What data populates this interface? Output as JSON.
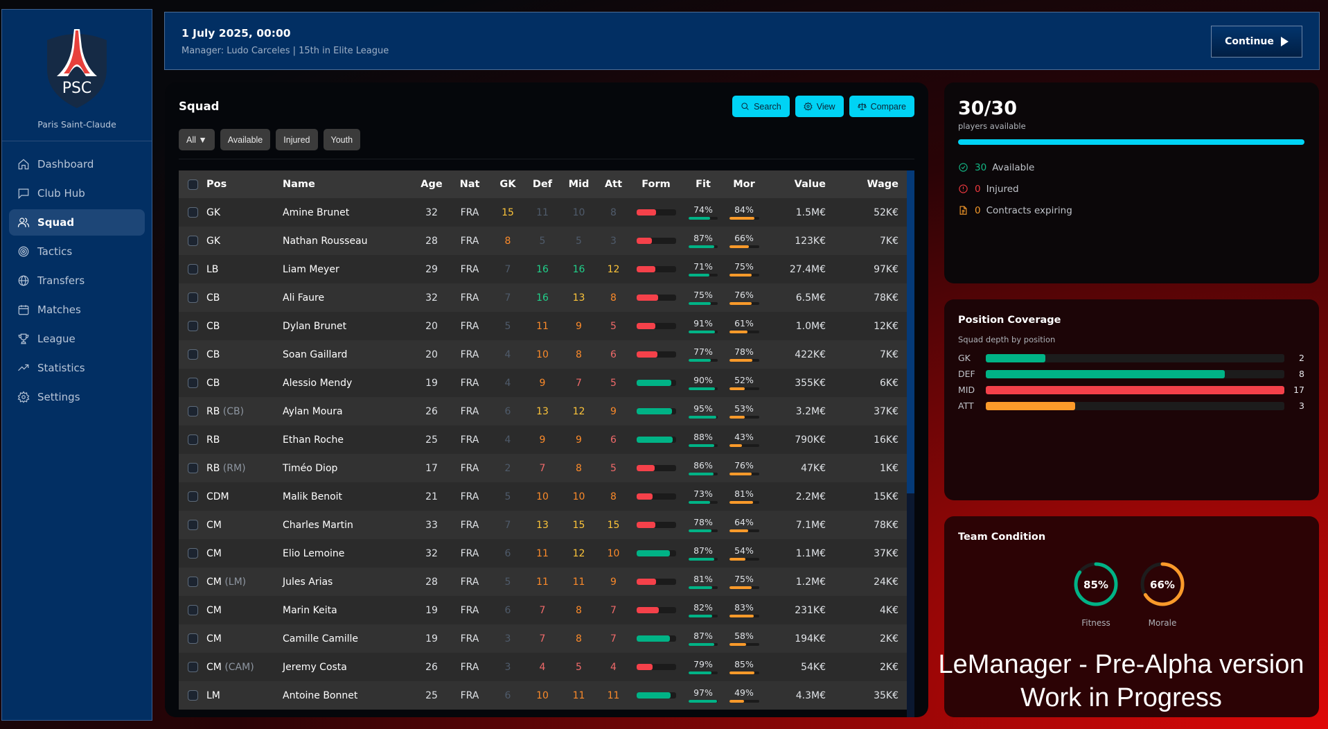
{
  "club": {
    "abbr": "PSC",
    "name": "Paris Saint-Claude"
  },
  "sidebar": {
    "items": [
      {
        "label": "Dashboard",
        "icon": "home-icon",
        "active": false
      },
      {
        "label": "Club Hub",
        "icon": "chat-icon",
        "active": false
      },
      {
        "label": "Squad",
        "icon": "users-icon",
        "active": true
      },
      {
        "label": "Tactics",
        "icon": "target-icon",
        "active": false
      },
      {
        "label": "Transfers",
        "icon": "globe-icon",
        "active": false
      },
      {
        "label": "Matches",
        "icon": "calendar-icon",
        "active": false
      },
      {
        "label": "League",
        "icon": "trophy-icon",
        "active": false
      },
      {
        "label": "Statistics",
        "icon": "trend-icon",
        "active": false
      },
      {
        "label": "Settings",
        "icon": "gear-icon",
        "active": false
      }
    ]
  },
  "header": {
    "date": "1 July 2025, 00:00",
    "subtitle": "Manager: Ludo Carceles | 15th in Elite League",
    "continue_label": "Continue"
  },
  "squad": {
    "title": "Squad",
    "filters": [
      "All ▼",
      "Available",
      "Injured",
      "Youth"
    ],
    "actions": [
      {
        "label": "Search",
        "icon": "search-icon"
      },
      {
        "label": "View",
        "icon": "gear-icon"
      },
      {
        "label": "Compare",
        "icon": "scale-icon"
      }
    ],
    "columns": [
      "Pos",
      "Name",
      "Age",
      "Nat",
      "GK",
      "Def",
      "Mid",
      "Att",
      "Form",
      "Fit",
      "Mor",
      "Value",
      "Wage"
    ],
    "players": [
      {
        "pos": "GK",
        "alt": "",
        "name": "Amine Brunet",
        "age": "32",
        "nat": "FRA",
        "gk": 15,
        "def": 11,
        "mid": 10,
        "att": 8,
        "form": 50,
        "form_color": "#f5414a",
        "fit": "74%",
        "mor": "84%",
        "value": "1.5M€",
        "wage": "52K€",
        "dim": [
          "def",
          "mid",
          "att"
        ]
      },
      {
        "pos": "GK",
        "alt": "",
        "name": "Nathan Rousseau",
        "age": "28",
        "nat": "FRA",
        "gk": 8,
        "def": 5,
        "mid": 5,
        "att": 3,
        "form": 40,
        "form_color": "#f5414a",
        "fit": "87%",
        "mor": "66%",
        "value": "123K€",
        "wage": "7K€",
        "dim": [
          "def",
          "mid",
          "att"
        ]
      },
      {
        "pos": "LB",
        "alt": "",
        "name": "Liam Meyer",
        "age": "29",
        "nat": "FRA",
        "gk": 7,
        "def": 16,
        "mid": 16,
        "att": 12,
        "form": 48,
        "form_color": "#f5414a",
        "fit": "71%",
        "mor": "75%",
        "value": "27.4M€",
        "wage": "97K€",
        "dim": [
          "gk"
        ]
      },
      {
        "pos": "CB",
        "alt": "",
        "name": "Ali Faure",
        "age": "32",
        "nat": "FRA",
        "gk": 7,
        "def": 16,
        "mid": 13,
        "att": 8,
        "form": 55,
        "form_color": "#f5414a",
        "fit": "75%",
        "mor": "76%",
        "value": "6.5M€",
        "wage": "78K€",
        "dim": [
          "gk"
        ]
      },
      {
        "pos": "CB",
        "alt": "",
        "name": "Dylan Brunet",
        "age": "20",
        "nat": "FRA",
        "gk": 5,
        "def": 11,
        "mid": 9,
        "att": 5,
        "form": 48,
        "form_color": "#f5414a",
        "fit": "91%",
        "mor": "61%",
        "value": "1.0M€",
        "wage": "12K€",
        "dim": [
          "gk"
        ]
      },
      {
        "pos": "CB",
        "alt": "",
        "name": "Soan Gaillard",
        "age": "20",
        "nat": "FRA",
        "gk": 4,
        "def": 10,
        "mid": 8,
        "att": 6,
        "form": 53,
        "form_color": "#f5414a",
        "fit": "77%",
        "mor": "78%",
        "value": "422K€",
        "wage": "7K€",
        "dim": [
          "gk"
        ]
      },
      {
        "pos": "CB",
        "alt": "",
        "name": "Alessio Mendy",
        "age": "19",
        "nat": "FRA",
        "gk": 4,
        "def": 9,
        "mid": 7,
        "att": 5,
        "form": 88,
        "form_color": "#00b386",
        "fit": "90%",
        "mor": "52%",
        "value": "355K€",
        "wage": "6K€",
        "dim": [
          "gk"
        ]
      },
      {
        "pos": "RB",
        "alt": "(CB)",
        "name": "Aylan Moura",
        "age": "26",
        "nat": "FRA",
        "gk": 6,
        "def": 13,
        "mid": 12,
        "att": 9,
        "form": 90,
        "form_color": "#00b386",
        "fit": "95%",
        "mor": "53%",
        "value": "3.2M€",
        "wage": "37K€",
        "dim": [
          "gk"
        ]
      },
      {
        "pos": "RB",
        "alt": "",
        "name": "Ethan Roche",
        "age": "25",
        "nat": "FRA",
        "gk": 4,
        "def": 9,
        "mid": 9,
        "att": 6,
        "form": 92,
        "form_color": "#00b386",
        "fit": "88%",
        "mor": "43%",
        "value": "790K€",
        "wage": "16K€",
        "dim": [
          "gk"
        ]
      },
      {
        "pos": "RB",
        "alt": "(RM)",
        "name": "Timéo Diop",
        "age": "17",
        "nat": "FRA",
        "gk": 2,
        "def": 7,
        "mid": 8,
        "att": 5,
        "form": 46,
        "form_color": "#f5414a",
        "fit": "86%",
        "mor": "76%",
        "value": "47K€",
        "wage": "1K€",
        "dim": [
          "gk"
        ]
      },
      {
        "pos": "CDM",
        "alt": "",
        "name": "Malik Benoit",
        "age": "21",
        "nat": "FRA",
        "gk": 5,
        "def": 10,
        "mid": 10,
        "att": 8,
        "form": 41,
        "form_color": "#f5414a",
        "fit": "73%",
        "mor": "81%",
        "value": "2.2M€",
        "wage": "15K€",
        "dim": [
          "gk"
        ]
      },
      {
        "pos": "CM",
        "alt": "",
        "name": "Charles Martin",
        "age": "33",
        "nat": "FRA",
        "gk": 7,
        "def": 13,
        "mid": 15,
        "att": 15,
        "form": 48,
        "form_color": "#f5414a",
        "fit": "78%",
        "mor": "64%",
        "value": "7.1M€",
        "wage": "78K€",
        "dim": [
          "gk"
        ]
      },
      {
        "pos": "CM",
        "alt": "",
        "name": "Elio Lemoine",
        "age": "32",
        "nat": "FRA",
        "gk": 6,
        "def": 11,
        "mid": 12,
        "att": 10,
        "form": 85,
        "form_color": "#00b386",
        "fit": "87%",
        "mor": "54%",
        "value": "1.1M€",
        "wage": "37K€",
        "dim": [
          "gk"
        ]
      },
      {
        "pos": "CM",
        "alt": "(LM)",
        "name": "Jules Arias",
        "age": "28",
        "nat": "FRA",
        "gk": 5,
        "def": 11,
        "mid": 11,
        "att": 9,
        "form": 50,
        "form_color": "#f5414a",
        "fit": "81%",
        "mor": "75%",
        "value": "1.2M€",
        "wage": "24K€",
        "dim": [
          "gk"
        ]
      },
      {
        "pos": "CM",
        "alt": "",
        "name": "Marin Keita",
        "age": "19",
        "nat": "FRA",
        "gk": 6,
        "def": 7,
        "mid": 8,
        "att": 7,
        "form": 57,
        "form_color": "#f5414a",
        "fit": "82%",
        "mor": "83%",
        "value": "231K€",
        "wage": "4K€",
        "dim": [
          "gk"
        ]
      },
      {
        "pos": "CM",
        "alt": "",
        "name": "Camille Camille",
        "age": "19",
        "nat": "FRA",
        "gk": 3,
        "def": 7,
        "mid": 8,
        "att": 7,
        "form": 85,
        "form_color": "#00b386",
        "fit": "87%",
        "mor": "58%",
        "value": "194K€",
        "wage": "2K€",
        "dim": [
          "gk"
        ]
      },
      {
        "pos": "CM",
        "alt": "(CAM)",
        "name": "Jeremy Costa",
        "age": "26",
        "nat": "FRA",
        "gk": 3,
        "def": 4,
        "mid": 5,
        "att": 4,
        "form": 41,
        "form_color": "#f5414a",
        "fit": "79%",
        "mor": "85%",
        "value": "54K€",
        "wage": "2K€",
        "dim": [
          "gk"
        ]
      },
      {
        "pos": "LM",
        "alt": "",
        "name": "Antoine Bonnet",
        "age": "25",
        "nat": "FRA",
        "gk": 6,
        "def": 10,
        "mid": 11,
        "att": 11,
        "form": 86,
        "form_color": "#00b386",
        "fit": "97%",
        "mor": "49%",
        "value": "4.3M€",
        "wage": "35K€",
        "dim": [
          "gk"
        ]
      }
    ]
  },
  "availability": {
    "count": "30/30",
    "label": "players available",
    "percent": 100,
    "stats": [
      {
        "num": "30",
        "label": "Available",
        "icon": "check-circle-icon",
        "color": "#13b886"
      },
      {
        "num": "0",
        "label": "Injured",
        "icon": "alert-circle-icon",
        "color": "#f0393f"
      },
      {
        "num": "0",
        "label": "Contracts expiring",
        "icon": "document-icon",
        "color": "#f79a2a"
      }
    ]
  },
  "coverage": {
    "title": "Position Coverage",
    "subtitle": "Squad depth by position",
    "rows": [
      {
        "label": "GK",
        "value": 2,
        "fill": 20,
        "color": "#00b386"
      },
      {
        "label": "DEF",
        "value": 8,
        "fill": 80,
        "color": "#00b386"
      },
      {
        "label": "MID",
        "value": 17,
        "fill": 100,
        "color": "#f5414a"
      },
      {
        "label": "ATT",
        "value": 3,
        "fill": 30,
        "color": "#fb9a2a"
      }
    ]
  },
  "condition": {
    "title": "Team Condition",
    "rings": [
      {
        "label": "Fitness",
        "value": 85,
        "text": "85%",
        "color": "#00b386"
      },
      {
        "label": "Morale",
        "value": 66,
        "text": "66%",
        "color": "#fb9a2a"
      }
    ]
  },
  "colors": {
    "accent": "#00d3f5",
    "sidebar_bg": "#022f63",
    "green": "#00b386",
    "red": "#f5414a",
    "orange": "#fb9a2a"
  },
  "watermark": {
    "line1": "LeManager - Pre-Alpha version",
    "line2": "Work in Progress"
  }
}
